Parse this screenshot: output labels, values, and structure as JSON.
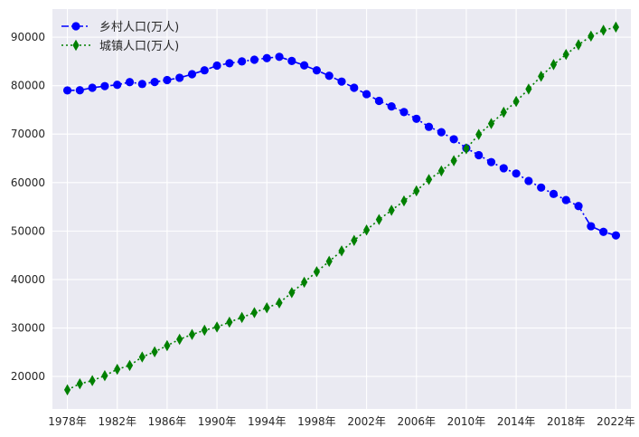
{
  "chart_data": {
    "type": "line",
    "title": "",
    "xlabel": "",
    "ylabel": "",
    "x": [
      1978,
      1979,
      1980,
      1981,
      1982,
      1983,
      1984,
      1985,
      1986,
      1987,
      1988,
      1989,
      1990,
      1991,
      1992,
      1993,
      1994,
      1995,
      1996,
      1997,
      1998,
      1999,
      2000,
      2001,
      2002,
      2003,
      2004,
      2005,
      2006,
      2007,
      2008,
      2009,
      2010,
      2011,
      2012,
      2013,
      2014,
      2015,
      2016,
      2017,
      2018,
      2019,
      2020,
      2021,
      2022
    ],
    "xticks": [
      1978,
      1982,
      1986,
      1990,
      1994,
      1998,
      2002,
      2006,
      2010,
      2014,
      2018,
      2022
    ],
    "xtick_labels": [
      "1978年",
      "1982年",
      "1986年",
      "1990年",
      "1994年",
      "1998年",
      "2002年",
      "2006年",
      "2010年",
      "2014年",
      "2018年",
      "2022年"
    ],
    "xlim": [
      1976.8,
      2023.2
    ],
    "yticks": [
      20000,
      30000,
      40000,
      50000,
      60000,
      70000,
      80000,
      90000
    ],
    "ytick_labels": [
      "20000",
      "30000",
      "40000",
      "50000",
      "60000",
      "70000",
      "80000",
      "90000"
    ],
    "ylim": [
      13300,
      95800
    ],
    "grid": true,
    "legend_position": "top-left",
    "series": [
      {
        "name": "乡村人口(万人)",
        "color": "#0000ff",
        "marker": "circle",
        "linestyle": "dashdot",
        "values": [
          79014,
          79047,
          79565,
          79901,
          80174,
          80734,
          80340,
          80757,
          81141,
          81626,
          82365,
          83164,
          84138,
          84620,
          84996,
          85344,
          85681,
          85947,
          85085,
          84177,
          83153,
          82038,
          80837,
          79563,
          78241,
          76851,
          75705,
          74544,
          73160,
          71496,
          70399,
          68938,
          67113,
          65656,
          64222,
          62961,
          61866,
          60346,
          58973,
          57661,
          56401,
          55162,
          50992,
          49835,
          49104
        ]
      },
      {
        "name": "城镇人口(万人)",
        "color": "#008000",
        "marker": "thin_diamond",
        "linestyle": "dotted",
        "values": [
          17245,
          18495,
          19140,
          20171,
          21480,
          22274,
          24017,
          25094,
          26366,
          27674,
          28661,
          29540,
          30195,
          31203,
          32175,
          33173,
          34169,
          35174,
          37304,
          39449,
          41608,
          43748,
          45906,
          48064,
          50212,
          52376,
          54283,
          56212,
          58288,
          60633,
          62403,
          64512,
          66978,
          69927,
          72175,
          74502,
          76738,
          79302,
          81924,
          84343,
          86433,
          88426,
          90220,
          91425,
          92071
        ]
      }
    ]
  }
}
